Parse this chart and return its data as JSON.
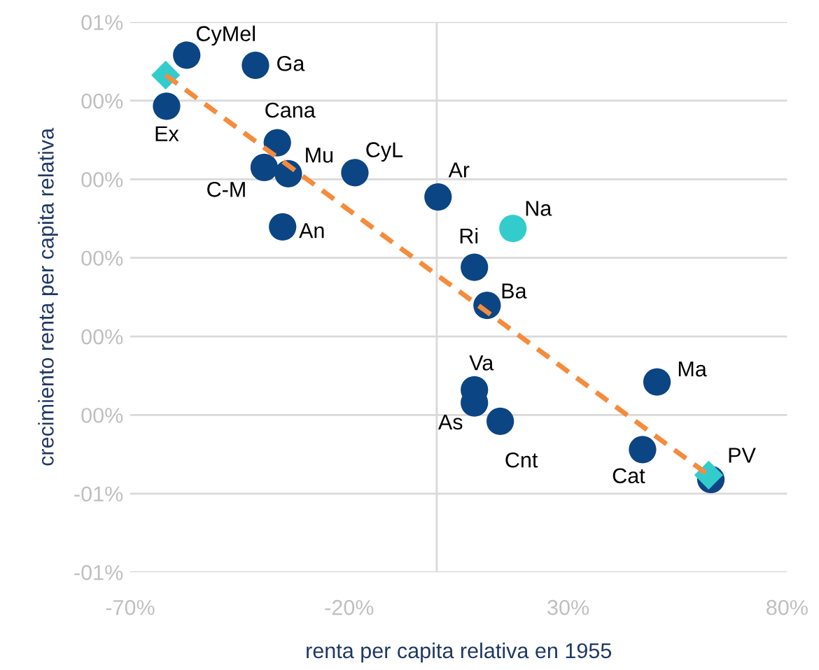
{
  "chart_data": {
    "type": "scatter",
    "xlabel": "renta per capita relativa en 1955",
    "ylabel": "crecimiento renta per capita relativa",
    "xlim": [
      -70,
      80
    ],
    "xticks": [
      {
        "value": -70,
        "label": "-70%"
      },
      {
        "value": -20,
        "label": "-20%"
      },
      {
        "value": 30,
        "label": "30%"
      },
      {
        "value": 80,
        "label": "80%"
      }
    ],
    "ylim": [
      -0.8,
      0.6
    ],
    "yticks": [
      {
        "value": 0.6,
        "label": "01%"
      },
      {
        "value": 0.4,
        "label": "00%"
      },
      {
        "value": 0.2,
        "label": "00%"
      },
      {
        "value": 0,
        "label": "00%"
      },
      {
        "value": -0.2,
        "label": "00%"
      },
      {
        "value": -0.4,
        "label": "00%"
      },
      {
        "value": -0.6,
        "label": "-01%"
      },
      {
        "value": -0.8,
        "label": "-01%"
      }
    ],
    "grid": "y",
    "legend": false,
    "ref_lines": [
      {
        "axis": "x",
        "value": 0,
        "color": "#d9d9d9"
      }
    ],
    "series": [
      {
        "marker": "circle",
        "color": "#0b4584",
        "x": [
          -57.1,
          -41.4,
          -61.7,
          -36.4,
          -39.4,
          -33.9,
          -18.7,
          -35.2,
          0.3,
          17.4,
          8.6,
          11.5,
          8.6,
          8.6,
          14.5,
          50.3,
          47.0,
          62.6
        ],
        "values": [
          0.516,
          0.49,
          0.386,
          0.293,
          0.23,
          0.214,
          0.217,
          0.079,
          0.155,
          0.075,
          -0.024,
          -0.121,
          -0.336,
          -0.369,
          -0.416,
          -0.316,
          -0.488,
          -0.564
        ],
        "colors": [
          "#0b4584",
          "#0b4584",
          "#0b4584",
          "#0b4584",
          "#0b4584",
          "#0b4584",
          "#0b4584",
          "#0b4584",
          "#0b4584",
          "#33cccc",
          "#0b4584",
          "#0b4584",
          "#0b4584",
          "#0b4584",
          "#0b4584",
          "#0b4584",
          "#0b4584",
          "#0b4584"
        ]
      },
      {
        "type": "line",
        "color": "#f58b3c",
        "line_style": "dashed",
        "marker": "none",
        "x": [
          -61.9,
          62.1
        ],
        "values": [
          0.465,
          -0.553
        ]
      },
      {
        "marker": "diamond",
        "color": "#33cccc",
        "x": [
          -61.9,
          62.1
        ],
        "values": [
          0.465,
          -0.553
        ]
      }
    ],
    "annotations": [
      {
        "text": "CyMel",
        "x": -57.1,
        "y": 0.516
      },
      {
        "text": "Ga",
        "x": -41.4,
        "y": 0.49
      },
      {
        "text": "Ex",
        "x": -61.7,
        "y": 0.386
      },
      {
        "text": "Cana",
        "x": -36.4,
        "y": 0.293
      },
      {
        "text": "C-M",
        "x": -39.4,
        "y": 0.23
      },
      {
        "text": "Mu",
        "x": -33.9,
        "y": 0.214
      },
      {
        "text": "CyL",
        "x": -18.7,
        "y": 0.217
      },
      {
        "text": "An",
        "x": -35.2,
        "y": 0.079
      },
      {
        "text": "Ar",
        "x": 0.3,
        "y": 0.155
      },
      {
        "text": "Na",
        "x": 17.4,
        "y": 0.075
      },
      {
        "text": "Ri",
        "x": 8.6,
        "y": -0.024
      },
      {
        "text": "Ba",
        "x": 11.5,
        "y": -0.121
      },
      {
        "text": "Va",
        "x": 8.6,
        "y": -0.336
      },
      {
        "text": "As",
        "x": 8.6,
        "y": -0.369
      },
      {
        "text": "Cnt",
        "x": 14.5,
        "y": -0.416
      },
      {
        "text": "Ma",
        "x": 50.3,
        "y": -0.316
      },
      {
        "text": "Cat",
        "x": 47.0,
        "y": -0.488
      },
      {
        "text": "PV",
        "x": 62.6,
        "y": -0.564
      }
    ]
  }
}
